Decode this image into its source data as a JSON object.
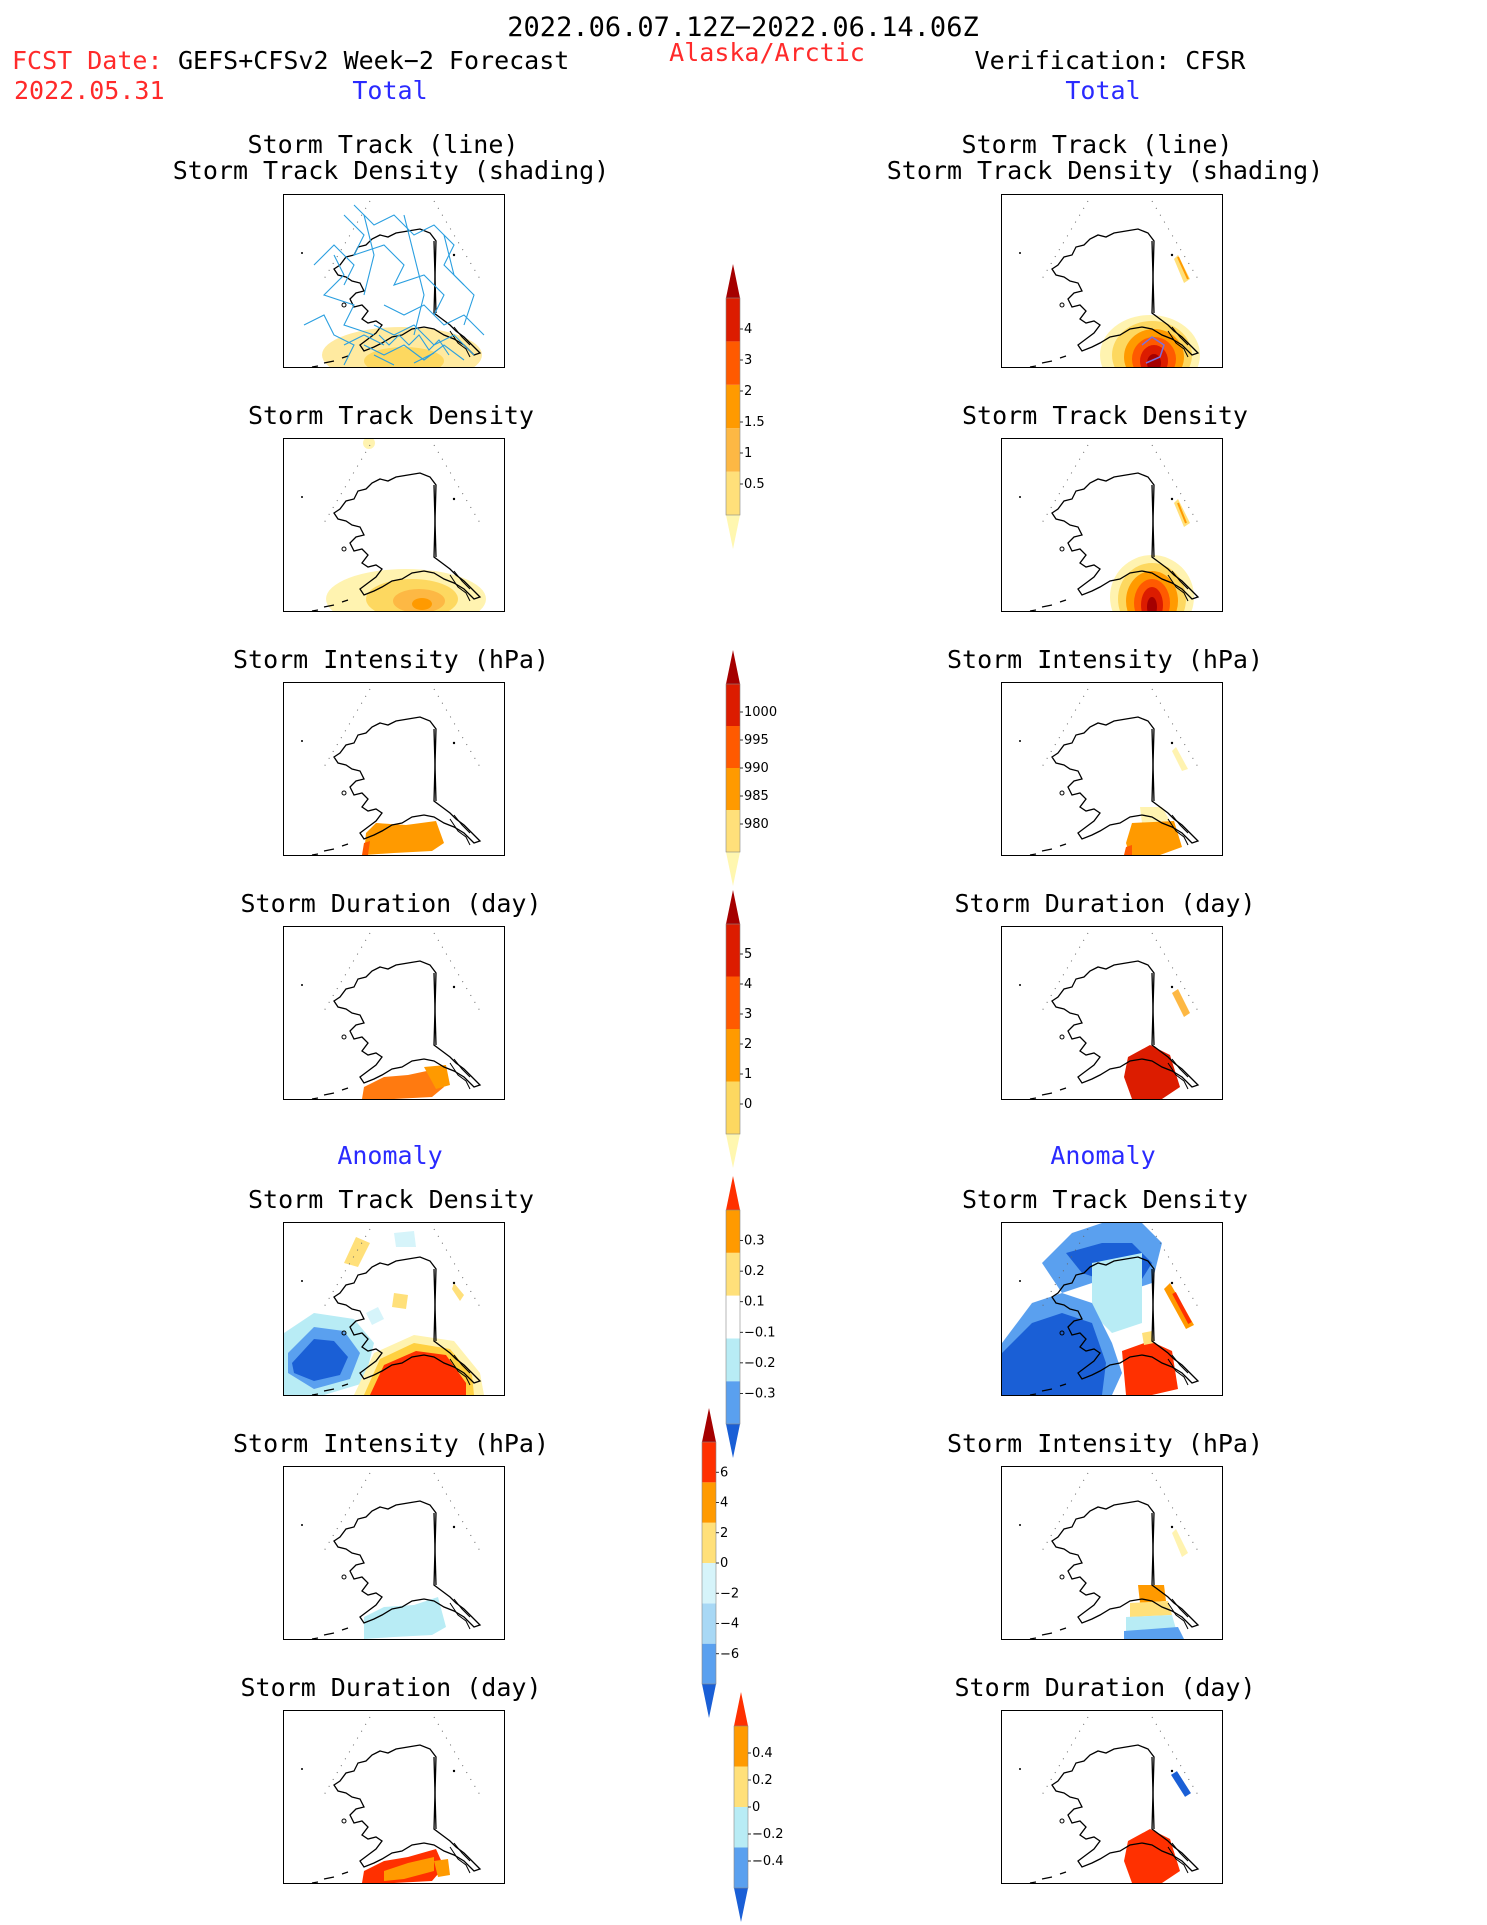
{
  "header": {
    "date_range": "2022.06.07.12Z−2022.06.14.06Z",
    "fcst_label": "FCST Date:",
    "forecast_name": "GEFS+CFSv2 Week−2 Forecast",
    "fcst_date": "2022.05.31",
    "region": "Alaska/Arctic",
    "verification": "Verification: CFSR"
  },
  "columns": {
    "left_section": "Total",
    "right_section": "Total",
    "left_anomaly": "Anomaly",
    "right_anomaly": "Anomaly"
  },
  "panels": {
    "track_line_title": "Storm Track (line)",
    "track_shading_title": "Storm Track Density (shading)",
    "density_title": "Storm Track Density",
    "intensity_title": "Storm Intensity (hPa)",
    "duration_title": "Storm Duration (day)"
  },
  "colorbars": {
    "density": {
      "ticks": [
        "4",
        "3",
        "2",
        "1.5",
        "1",
        "0.5"
      ],
      "colors": [
        "#fff7b0",
        "#ffe07a",
        "#fdb844",
        "#ff9a00",
        "#ff5a00",
        "#dc1c00",
        "#a50000"
      ]
    },
    "intensity": {
      "ticks": [
        "1000",
        "995",
        "990",
        "985",
        "980"
      ],
      "colors": [
        "#fff7b0",
        "#ffe07a",
        "#ff9a00",
        "#ff5a00",
        "#dc1c00",
        "#a50000"
      ]
    },
    "duration": {
      "ticks": [
        "5",
        "4",
        "3",
        "2",
        "1",
        "0"
      ],
      "colors": [
        "#fff7b0",
        "#fdd860",
        "#ff9a00",
        "#ff5a00",
        "#dc1c00",
        "#a50000"
      ]
    },
    "anom_density": {
      "ticks": [
        "0.3",
        "0.2",
        "0.1",
        "−0.1",
        "−0.2",
        "−0.3"
      ],
      "colors": [
        "#1a5fd6",
        "#5aa0ef",
        "#b8ecf5",
        "#ffffff",
        "#ffe07a",
        "#ff9a00",
        "#ff3000"
      ]
    },
    "anom_intensity": {
      "ticks": [
        "6",
        "4",
        "2",
        "0",
        "−2",
        "−4",
        "−6"
      ],
      "colors": [
        "#1a5fd6",
        "#5aa0ef",
        "#a8d8f5",
        "#d6f4fa",
        "#ffe07a",
        "#ff9a00",
        "#ff3000",
        "#a50000"
      ]
    },
    "anom_duration": {
      "ticks": [
        "0.4",
        "0.2",
        "0",
        "−0.2",
        "−0.4"
      ],
      "colors": [
        "#1a5fd6",
        "#5aa0ef",
        "#b8ecf5",
        "#ffe07a",
        "#ff9a00",
        "#ff3000"
      ]
    }
  }
}
